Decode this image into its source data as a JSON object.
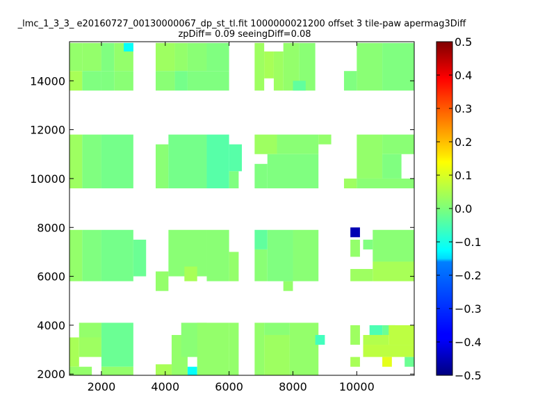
{
  "chart_data": {
    "type": "heatmap",
    "title_line1": "_lmc_1_3_3_ e20160727_00130000067_dp_st_tl.fit 1000000021200 offset 3 tile-paw apermag3Diff",
    "title_line2": "zpDiff= 0.09 seeingDiff=0.08",
    "xlabel": "",
    "ylabel": "",
    "xlim": [
      1000,
      11800
    ],
    "ylim": [
      1950,
      15600
    ],
    "xticks": [
      2000,
      4000,
      6000,
      8000,
      10000
    ],
    "xtick_labels": [
      "2000",
      "4000",
      "6000",
      "8000",
      "10000"
    ],
    "yticks": [
      2000,
      4000,
      6000,
      8000,
      10000,
      12000,
      14000
    ],
    "ytick_labels": [
      "2000",
      "4000",
      "6000",
      "8000",
      "10000",
      "12000",
      "14000"
    ],
    "grid": false,
    "colormap": "jet",
    "color_range": [
      -0.5,
      0.5
    ],
    "colorbar": {
      "ticks": [
        0.5,
        0.4,
        0.3,
        0.2,
        0.1,
        0.0,
        -0.1,
        -0.2,
        -0.3,
        -0.4,
        -0.5
      ],
      "tick_labels": [
        "0.5",
        "0.4",
        "0.3",
        "0.2",
        "0.1",
        "0.0",
        "−0.1",
        "−0.2",
        "−0.3",
        "−0.4",
        "−0.5"
      ]
    },
    "cells": [
      {
        "x0": 1000,
        "x1": 1400,
        "y0": 14400,
        "y1": 15550,
        "v": 0.02
      },
      {
        "x0": 1400,
        "x1": 2000,
        "y0": 14400,
        "y1": 15550,
        "v": 0.02
      },
      {
        "x0": 2000,
        "x1": 2400,
        "y0": 14400,
        "y1": 15550,
        "v": 0.0
      },
      {
        "x0": 2400,
        "x1": 3000,
        "y0": 14400,
        "y1": 15550,
        "v": 0.02
      },
      {
        "x0": 2700,
        "x1": 3000,
        "y0": 15200,
        "y1": 15550,
        "v": -0.12
      },
      {
        "x0": 1000,
        "x1": 1400,
        "y0": 13600,
        "y1": 14400,
        "v": 0.04
      },
      {
        "x0": 1400,
        "x1": 2000,
        "y0": 13600,
        "y1": 14400,
        "v": 0.0
      },
      {
        "x0": 2000,
        "x1": 2400,
        "y0": 13600,
        "y1": 14400,
        "v": 0.0
      },
      {
        "x0": 2400,
        "x1": 3000,
        "y0": 13600,
        "y1": 14400,
        "v": 0.01
      },
      {
        "x0": 3700,
        "x1": 4300,
        "y0": 14400,
        "y1": 15550,
        "v": 0.03
      },
      {
        "x0": 4300,
        "x1": 4700,
        "y0": 14400,
        "y1": 15550,
        "v": 0.02
      },
      {
        "x0": 4700,
        "x1": 5300,
        "y0": 14400,
        "y1": 15550,
        "v": 0.01
      },
      {
        "x0": 5300,
        "x1": 6000,
        "y0": 14400,
        "y1": 15550,
        "v": 0.0
      },
      {
        "x0": 3700,
        "x1": 4300,
        "y0": 13600,
        "y1": 14400,
        "v": 0.01
      },
      {
        "x0": 4300,
        "x1": 4700,
        "y0": 13600,
        "y1": 14400,
        "v": -0.01
      },
      {
        "x0": 4700,
        "x1": 5300,
        "y0": 13600,
        "y1": 14400,
        "v": 0.0
      },
      {
        "x0": 5300,
        "x1": 6000,
        "y0": 13600,
        "y1": 14400,
        "v": 0.0
      },
      {
        "x0": 6800,
        "x1": 7100,
        "y0": 13600,
        "y1": 15550,
        "v": 0.03
      },
      {
        "x0": 7100,
        "x1": 7400,
        "y0": 14100,
        "y1": 15200,
        "v": 0.04
      },
      {
        "x0": 7400,
        "x1": 7700,
        "y0": 13600,
        "y1": 15200,
        "v": 0.03
      },
      {
        "x0": 7700,
        "x1": 8200,
        "y0": 13600,
        "y1": 15550,
        "v": 0.02
      },
      {
        "x0": 8200,
        "x1": 8700,
        "y0": 13600,
        "y1": 15550,
        "v": 0.01
      },
      {
        "x0": 8000,
        "x1": 8400,
        "y0": 13600,
        "y1": 14000,
        "v": -0.03
      },
      {
        "x0": 9600,
        "x1": 10000,
        "y0": 13600,
        "y1": 14400,
        "v": 0.0
      },
      {
        "x0": 10000,
        "x1": 10800,
        "y0": 13600,
        "y1": 15550,
        "v": 0.01
      },
      {
        "x0": 10800,
        "x1": 11800,
        "y0": 13600,
        "y1": 15550,
        "v": 0.0
      },
      {
        "x0": 1000,
        "x1": 1400,
        "y0": 9600,
        "y1": 11800,
        "v": 0.03
      },
      {
        "x0": 1400,
        "x1": 2000,
        "y0": 9600,
        "y1": 11800,
        "v": 0.0
      },
      {
        "x0": 2000,
        "x1": 3000,
        "y0": 9600,
        "y1": 11800,
        "v": -0.01
      },
      {
        "x0": 3700,
        "x1": 4100,
        "y0": 9600,
        "y1": 11400,
        "v": 0.01
      },
      {
        "x0": 4100,
        "x1": 5300,
        "y0": 9600,
        "y1": 11800,
        "v": -0.01
      },
      {
        "x0": 5300,
        "x1": 6000,
        "y0": 9600,
        "y1": 11800,
        "v": -0.04
      },
      {
        "x0": 6000,
        "x1": 6400,
        "y0": 10300,
        "y1": 11400,
        "v": -0.04
      },
      {
        "x0": 6000,
        "x1": 6300,
        "y0": 9600,
        "y1": 10300,
        "v": 0.0
      },
      {
        "x0": 6800,
        "x1": 7500,
        "y0": 11000,
        "y1": 11800,
        "v": 0.03
      },
      {
        "x0": 7500,
        "x1": 8800,
        "y0": 11000,
        "y1": 11800,
        "v": 0.01
      },
      {
        "x0": 8800,
        "x1": 9200,
        "y0": 11400,
        "y1": 11800,
        "v": 0.02
      },
      {
        "x0": 6800,
        "x1": 7200,
        "y0": 9600,
        "y1": 10600,
        "v": 0.0
      },
      {
        "x0": 7200,
        "x1": 8800,
        "y0": 9600,
        "y1": 11000,
        "v": 0.0
      },
      {
        "x0": 10000,
        "x1": 10800,
        "y0": 10000,
        "y1": 11800,
        "v": 0.02
      },
      {
        "x0": 10800,
        "x1": 11800,
        "y0": 11000,
        "y1": 11800,
        "v": 0.01
      },
      {
        "x0": 10800,
        "x1": 11400,
        "y0": 10000,
        "y1": 11000,
        "v": 0.0
      },
      {
        "x0": 9600,
        "x1": 10000,
        "y0": 9600,
        "y1": 10000,
        "v": 0.03
      },
      {
        "x0": 10000,
        "x1": 11800,
        "y0": 9600,
        "y1": 10000,
        "v": 0.01
      },
      {
        "x0": 1000,
        "x1": 1400,
        "y0": 5800,
        "y1": 7900,
        "v": 0.02
      },
      {
        "x0": 1400,
        "x1": 2000,
        "y0": 5800,
        "y1": 7900,
        "v": 0.0
      },
      {
        "x0": 2000,
        "x1": 3000,
        "y0": 5800,
        "y1": 7900,
        "v": -0.01
      },
      {
        "x0": 3000,
        "x1": 3400,
        "y0": 6000,
        "y1": 7500,
        "v": -0.02
      },
      {
        "x0": 3700,
        "x1": 4100,
        "y0": 5400,
        "y1": 6200,
        "v": 0.02
      },
      {
        "x0": 4100,
        "x1": 5300,
        "y0": 6000,
        "y1": 7900,
        "v": 0.01
      },
      {
        "x0": 4600,
        "x1": 5000,
        "y0": 5800,
        "y1": 6400,
        "v": 0.04
      },
      {
        "x0": 5300,
        "x1": 6000,
        "y0": 5800,
        "y1": 7900,
        "v": 0.01
      },
      {
        "x0": 6000,
        "x1": 6300,
        "y0": 5800,
        "y1": 7000,
        "v": 0.02
      },
      {
        "x0": 6800,
        "x1": 7200,
        "y0": 7100,
        "y1": 7900,
        "v": -0.03
      },
      {
        "x0": 6800,
        "x1": 7200,
        "y0": 5800,
        "y1": 7100,
        "v": 0.01
      },
      {
        "x0": 7200,
        "x1": 8000,
        "y0": 5800,
        "y1": 7900,
        "v": 0.0
      },
      {
        "x0": 7700,
        "x1": 8000,
        "y0": 5400,
        "y1": 5800,
        "v": 0.02
      },
      {
        "x0": 8000,
        "x1": 8800,
        "y0": 5800,
        "y1": 7900,
        "v": 0.01
      },
      {
        "x0": 9800,
        "x1": 10100,
        "y0": 7600,
        "y1": 8000,
        "v": -0.45
      },
      {
        "x0": 9800,
        "x1": 10100,
        "y0": 6800,
        "y1": 7500,
        "v": 0.02
      },
      {
        "x0": 10500,
        "x1": 11800,
        "y0": 6600,
        "y1": 7900,
        "v": 0.01
      },
      {
        "x0": 10200,
        "x1": 10500,
        "y0": 7100,
        "y1": 7500,
        "v": 0.0
      },
      {
        "x0": 10500,
        "x1": 11800,
        "y0": 5800,
        "y1": 6600,
        "v": 0.04
      },
      {
        "x0": 9800,
        "x1": 10500,
        "y0": 5800,
        "y1": 6300,
        "v": 0.03
      },
      {
        "x0": 1300,
        "x1": 2000,
        "y0": 3500,
        "y1": 4100,
        "v": 0.02
      },
      {
        "x0": 1000,
        "x1": 1300,
        "y0": 2300,
        "y1": 3500,
        "v": 0.04
      },
      {
        "x0": 1300,
        "x1": 2000,
        "y0": 2700,
        "y1": 3500,
        "v": 0.03
      },
      {
        "x0": 1000,
        "x1": 1700,
        "y0": 1950,
        "y1": 2300,
        "v": 0.02
      },
      {
        "x0": 2000,
        "x1": 3000,
        "y0": 2300,
        "y1": 4100,
        "v": -0.02
      },
      {
        "x0": 2000,
        "x1": 3000,
        "y0": 1950,
        "y1": 2300,
        "v": 0.02
      },
      {
        "x0": 3700,
        "x1": 4200,
        "y0": 1950,
        "y1": 2400,
        "v": 0.04
      },
      {
        "x0": 4200,
        "x1": 4700,
        "y0": 1950,
        "y1": 3600,
        "v": 0.02
      },
      {
        "x0": 4500,
        "x1": 5300,
        "y0": 2700,
        "y1": 4100,
        "v": 0.01
      },
      {
        "x0": 4700,
        "x1": 5000,
        "y0": 1950,
        "y1": 2300,
        "v": -0.12
      },
      {
        "x0": 5000,
        "x1": 6000,
        "y0": 1950,
        "y1": 4100,
        "v": 0.02
      },
      {
        "x0": 6000,
        "x1": 6300,
        "y0": 1950,
        "y1": 4100,
        "v": 0.02
      },
      {
        "x0": 6800,
        "x1": 7100,
        "y0": 1950,
        "y1": 4100,
        "v": 0.02
      },
      {
        "x0": 7100,
        "x1": 7900,
        "y0": 1950,
        "y1": 3600,
        "v": 0.03
      },
      {
        "x0": 7100,
        "x1": 7900,
        "y0": 3600,
        "y1": 4100,
        "v": 0.01
      },
      {
        "x0": 7900,
        "x1": 8800,
        "y0": 1950,
        "y1": 4100,
        "v": 0.02
      },
      {
        "x0": 8700,
        "x1": 9000,
        "y0": 3200,
        "y1": 3600,
        "v": -0.06
      },
      {
        "x0": 9800,
        "x1": 10100,
        "y0": 3200,
        "y1": 4000,
        "v": 0.03
      },
      {
        "x0": 9800,
        "x1": 10100,
        "y0": 2300,
        "y1": 2700,
        "v": 0.04
      },
      {
        "x0": 10400,
        "x1": 10800,
        "y0": 3600,
        "y1": 4000,
        "v": -0.05
      },
      {
        "x0": 10800,
        "x1": 11200,
        "y0": 3600,
        "y1": 4000,
        "v": -0.02
      },
      {
        "x0": 10200,
        "x1": 11000,
        "y0": 3200,
        "y1": 3600,
        "v": 0.05
      },
      {
        "x0": 10200,
        "x1": 11800,
        "y0": 2700,
        "y1": 3200,
        "v": 0.06
      },
      {
        "x0": 11000,
        "x1": 11800,
        "y0": 3200,
        "y1": 4000,
        "v": 0.06
      },
      {
        "x0": 10800,
        "x1": 11100,
        "y0": 2300,
        "y1": 2700,
        "v": 0.1
      },
      {
        "x0": 11500,
        "x1": 11800,
        "y0": 2300,
        "y1": 2700,
        "v": -0.02
      }
    ]
  }
}
